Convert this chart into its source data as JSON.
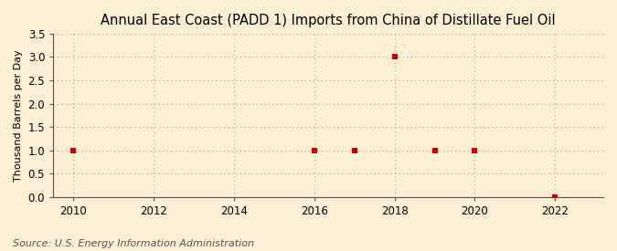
{
  "title": "Annual East Coast (PADD 1) Imports from China of Distillate Fuel Oil",
  "ylabel": "Thousand Barrels per Day",
  "source": "Source: U.S. Energy Information Administration",
  "years": [
    2010,
    2016,
    2017,
    2018,
    2019,
    2020,
    2022
  ],
  "values": [
    1.0,
    1.0,
    1.0,
    3.0,
    1.0,
    1.0,
    0.0
  ],
  "xlim": [
    2009.5,
    2023.2
  ],
  "ylim": [
    0.0,
    3.5
  ],
  "yticks": [
    0.0,
    0.5,
    1.0,
    1.5,
    2.0,
    2.5,
    3.0,
    3.5
  ],
  "xticks": [
    2010,
    2012,
    2014,
    2016,
    2018,
    2020,
    2022
  ],
  "marker_color": "#cc0000",
  "marker_size": 4,
  "background_color": "#faefd4",
  "plot_bg_color": "#faefd4",
  "grid_color": "#999999",
  "title_fontsize": 10.5,
  "axis_label_fontsize": 8,
  "tick_fontsize": 8.5,
  "source_fontsize": 8
}
